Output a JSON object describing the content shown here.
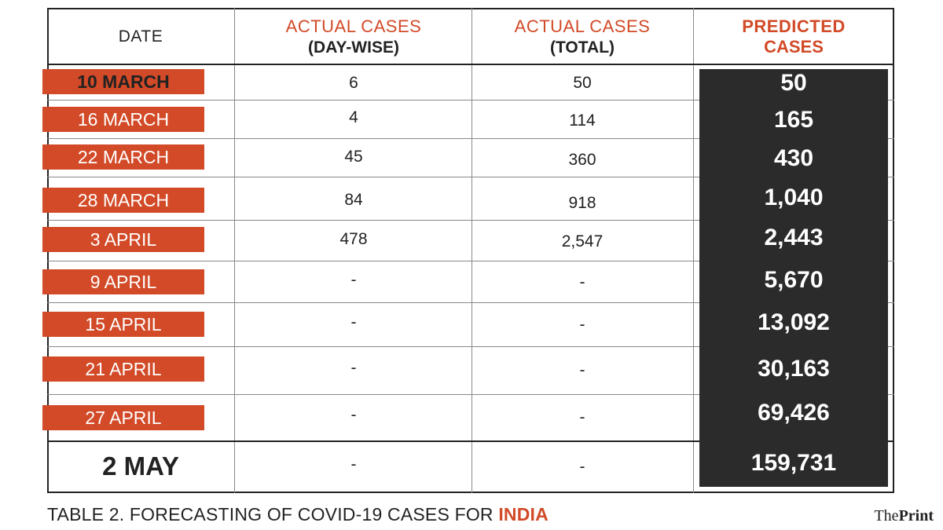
{
  "headers": {
    "date": "DATE",
    "daywise_line1": "ACTUAL CASES",
    "daywise_line2": "(DAY-WISE)",
    "total_line1": "ACTUAL CASES",
    "total_line2": "(TOTAL)",
    "pred_line1": "PREDICTED",
    "pred_line2": "CASES"
  },
  "rows": [
    {
      "date": "10 MARCH",
      "daywise": "6",
      "total": "50",
      "predicted": "50"
    },
    {
      "date": "16 MARCH",
      "daywise": "4",
      "total": "114",
      "predicted": "165"
    },
    {
      "date": "22 MARCH",
      "daywise": "45",
      "total": "360",
      "predicted": "430"
    },
    {
      "date": "28 MARCH",
      "daywise": "84",
      "total": "918",
      "predicted": "1,040"
    },
    {
      "date": "3 APRIL",
      "daywise": "478",
      "total": "2,547",
      "predicted": "2,443"
    },
    {
      "date": "9 APRIL",
      "daywise": "-",
      "total": "-",
      "predicted": "5,670"
    },
    {
      "date": "15 APRIL",
      "daywise": "-",
      "total": "-",
      "predicted": "13,092"
    },
    {
      "date": "21 APRIL",
      "daywise": "-",
      "total": "-",
      "predicted": "30,163"
    },
    {
      "date": "27 APRIL",
      "daywise": "-",
      "total": "-",
      "predicted": "69,426"
    },
    {
      "date": "2 MAY",
      "daywise": "-",
      "total": "-",
      "predicted": "159,731"
    }
  ],
  "caption": {
    "text": "TABLE 2. FORECASTING OF COVID-19 CASES FOR ",
    "highlight": "INDIA"
  },
  "brand": {
    "the": "The",
    "print": "Print"
  },
  "colors": {
    "accent": "#d24a27",
    "dark": "#2b2b2b"
  }
}
